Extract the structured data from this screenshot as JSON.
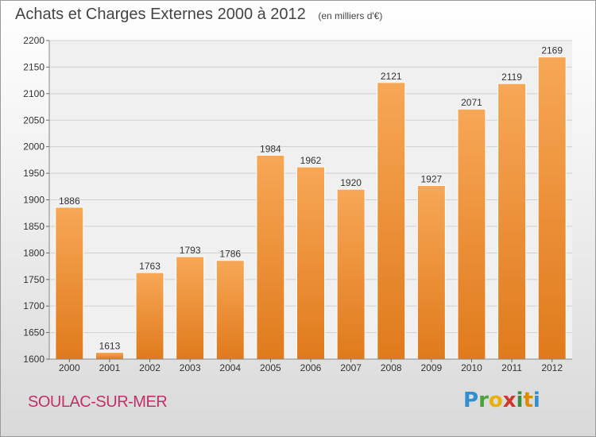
{
  "chart_data": {
    "type": "bar",
    "title": "Achats et Charges Externes 2000 à 2012",
    "subtitle": "(en milliers d'€)",
    "categories": [
      "2000",
      "2001",
      "2002",
      "2003",
      "2004",
      "2005",
      "2006",
      "2007",
      "2008",
      "2009",
      "2010",
      "2011",
      "2012"
    ],
    "values": [
      1886,
      1613,
      1763,
      1793,
      1786,
      1984,
      1962,
      1920,
      2121,
      1927,
      2071,
      2119,
      2169
    ],
    "ylim": [
      1600,
      2200
    ],
    "yticks": [
      1600,
      1650,
      1700,
      1750,
      1800,
      1850,
      1900,
      1950,
      2000,
      2050,
      2100,
      2150,
      2200
    ],
    "grid": true,
    "bar_color": "#f0913a",
    "xlabel": "",
    "ylabel": ""
  },
  "footer": {
    "location": "SOULAC-SUR-MER",
    "logo": {
      "letters": [
        "P",
        "r",
        "o",
        "x",
        "i",
        "t",
        "i"
      ]
    }
  }
}
